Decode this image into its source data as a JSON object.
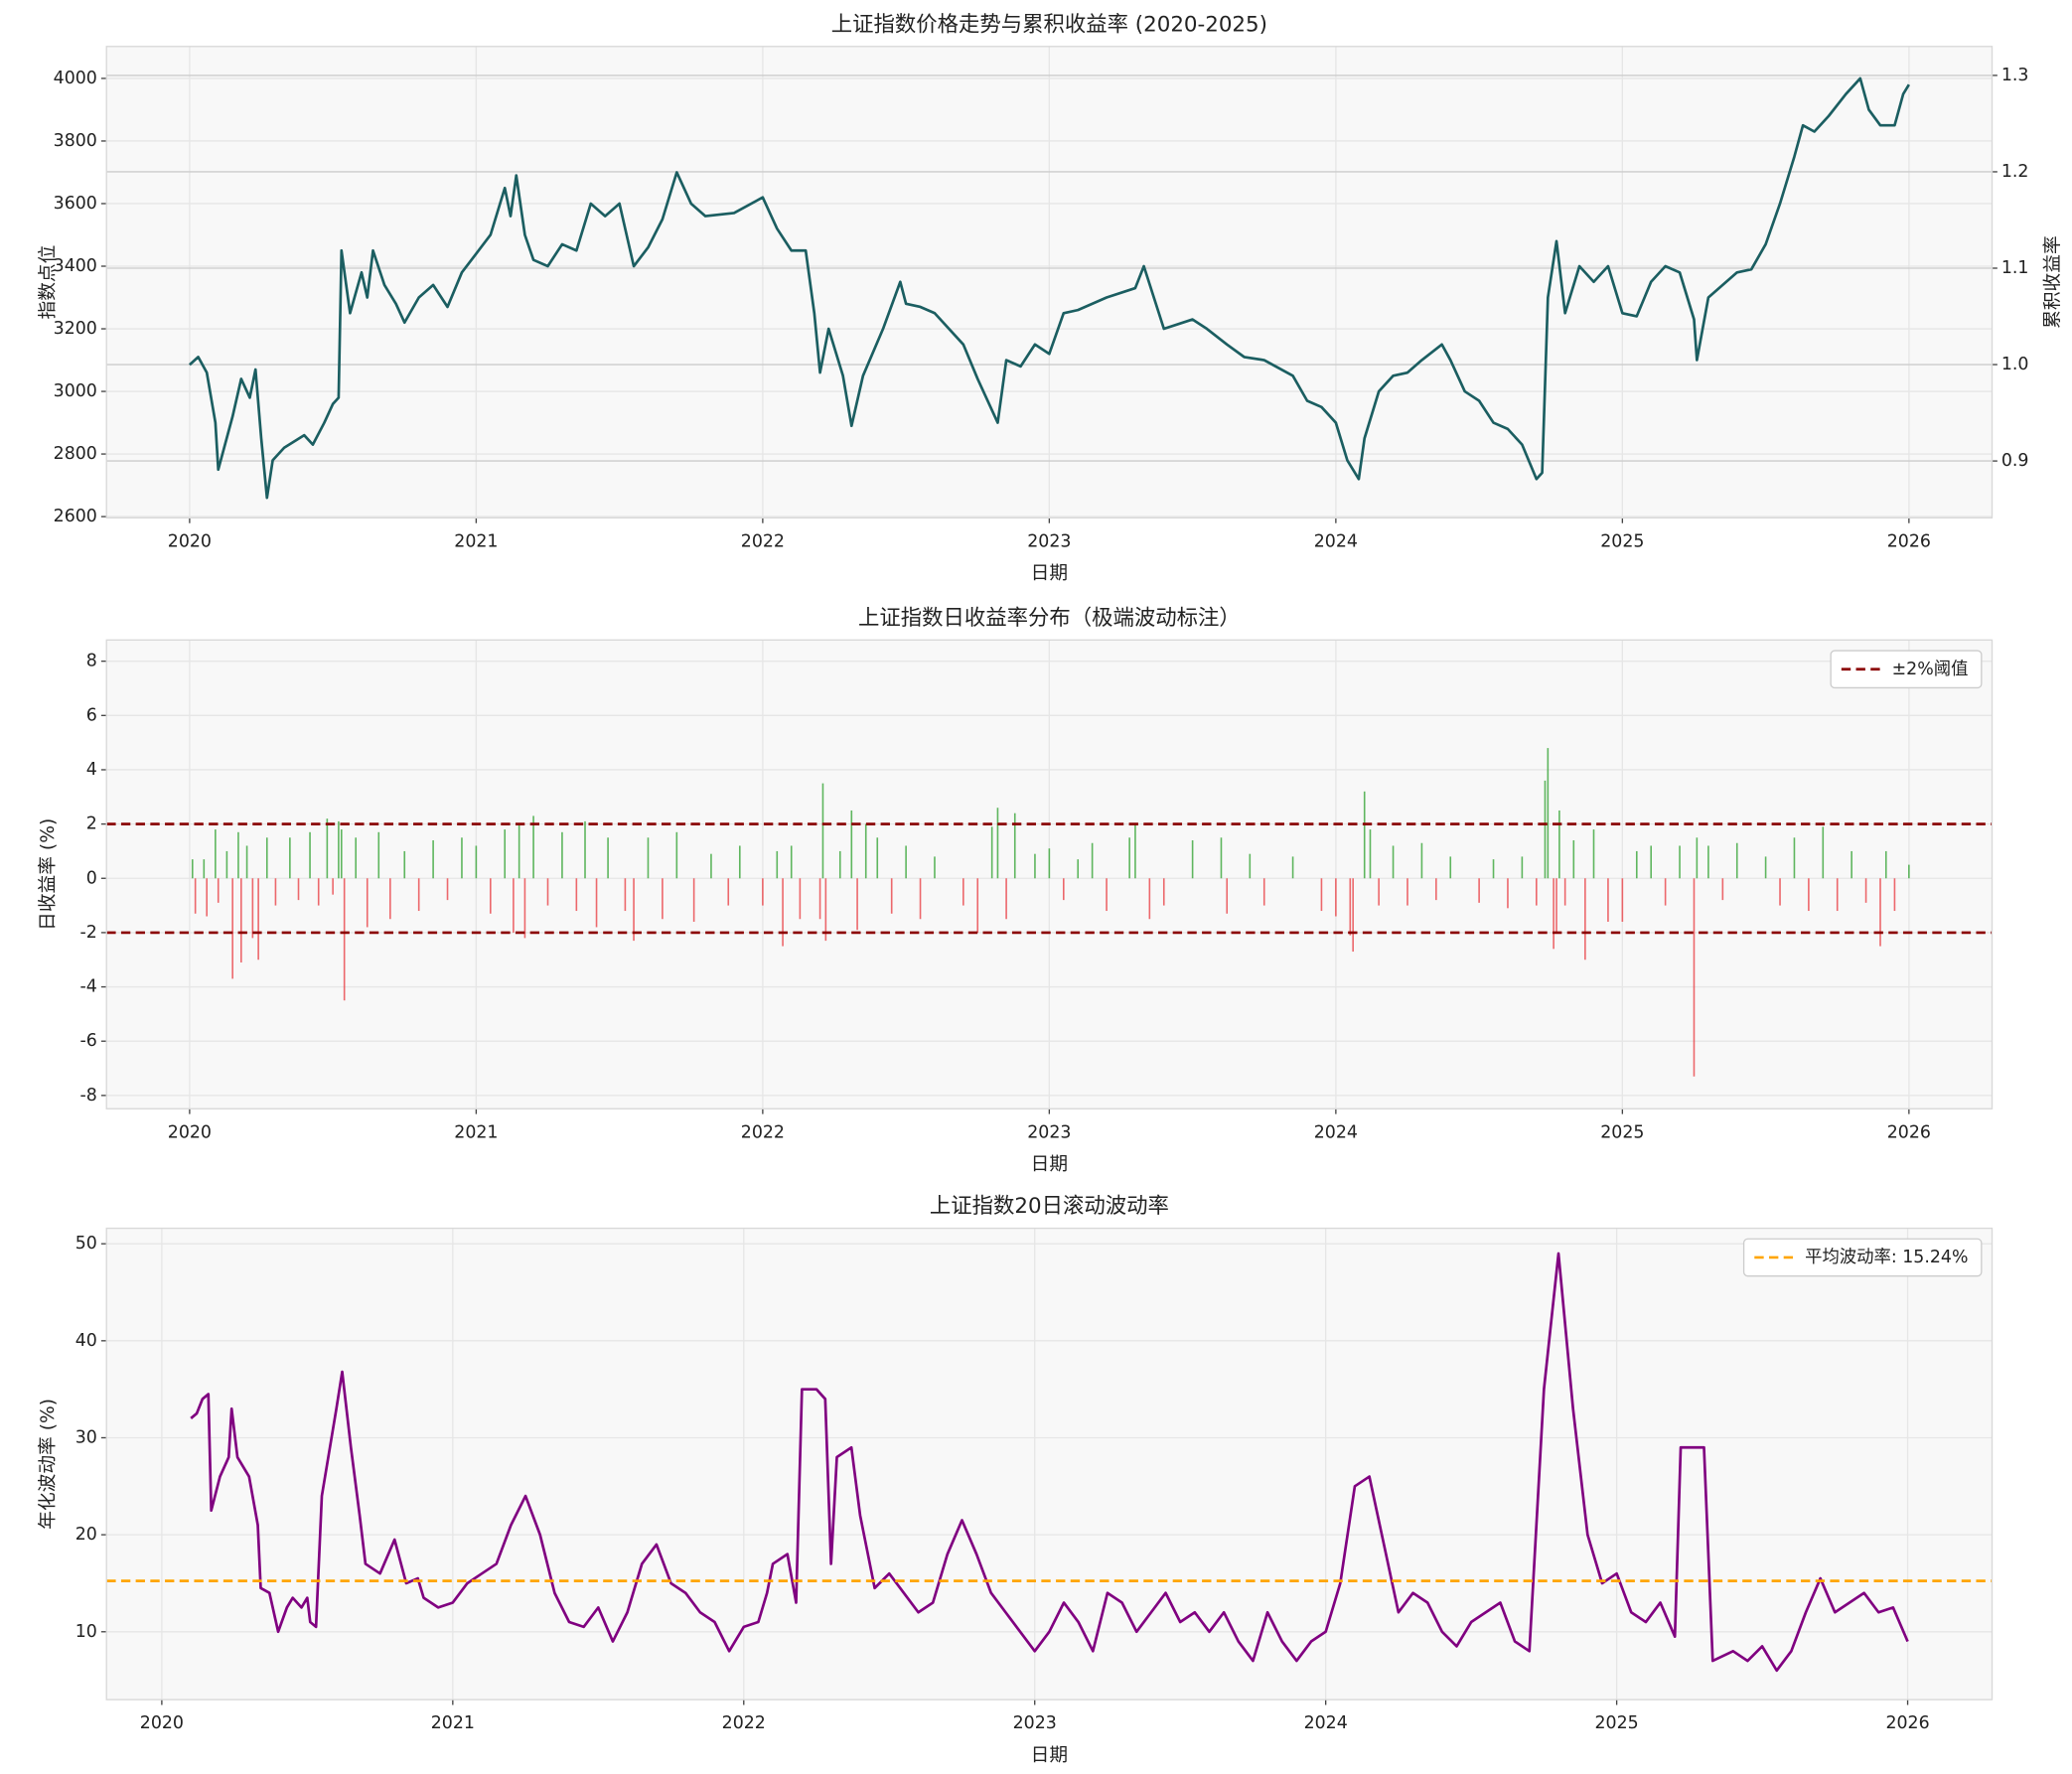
{
  "chart_data": [
    {
      "type": "line",
      "title": "上证指数价格走势与累积收益率 (2020-2025)",
      "x_label": "日期",
      "y_label": "指数点位",
      "y_label_color": "#0000ff",
      "y2_label": "累积收益率",
      "y2_label_color": "#008000",
      "xlim": [
        2019.71,
        2026.29
      ],
      "xticks": [
        2020,
        2021,
        2022,
        2023,
        2024,
        2025,
        2026
      ],
      "ylim": [
        2596,
        4102
      ],
      "yticks": [
        2600,
        2800,
        3000,
        3200,
        3400,
        3600,
        3800,
        4000
      ],
      "y2lim": [
        0.841,
        1.33
      ],
      "y2ticks": [
        0.9,
        {
          "value": 1.0,
          "label": "1.0"
        },
        1.1,
        1.2,
        1.3
      ],
      "grid": true,
      "x": [
        2020.0,
        2020.03,
        2020.06,
        2020.09,
        2020.1,
        2020.15,
        2020.18,
        2020.21,
        2020.23,
        2020.25,
        2020.27,
        2020.29,
        2020.33,
        2020.4,
        2020.43,
        2020.47,
        2020.5,
        2020.52,
        2020.53,
        2020.56,
        2020.6,
        2020.62,
        2020.64,
        2020.68,
        2020.72,
        2020.75,
        2020.8,
        2020.85,
        2020.9,
        2020.95,
        2021.0,
        2021.05,
        2021.1,
        2021.12,
        2021.14,
        2021.17,
        2021.2,
        2021.25,
        2021.3,
        2021.35,
        2021.4,
        2021.45,
        2021.5,
        2021.55,
        2021.6,
        2021.65,
        2021.7,
        2021.75,
        2021.8,
        2021.9,
        2022.0,
        2022.05,
        2022.1,
        2022.15,
        2022.18,
        2022.2,
        2022.23,
        2022.28,
        2022.31,
        2022.35,
        2022.42,
        2022.48,
        2022.5,
        2022.55,
        2022.6,
        2022.7,
        2022.75,
        2022.82,
        2022.85,
        2022.9,
        2022.95,
        2023.0,
        2023.05,
        2023.1,
        2023.2,
        2023.3,
        2023.33,
        2023.4,
        2023.5,
        2023.55,
        2023.62,
        2023.68,
        2023.75,
        2023.85,
        2023.9,
        2023.95,
        2024.0,
        2024.04,
        2024.08,
        2024.1,
        2024.15,
        2024.2,
        2024.25,
        2024.3,
        2024.37,
        2024.4,
        2024.45,
        2024.5,
        2024.55,
        2024.6,
        2024.65,
        2024.7,
        2024.72,
        2024.74,
        2024.77,
        2024.8,
        2024.85,
        2024.9,
        2024.95,
        2025.0,
        2025.05,
        2025.1,
        2025.15,
        2025.2,
        2025.25,
        2025.26,
        2025.3,
        2025.4,
        2025.45,
        2025.5,
        2025.55,
        2025.6,
        2025.63,
        2025.67,
        2025.72,
        2025.78,
        2025.83,
        2025.86,
        2025.9,
        2025.95,
        2025.98,
        2026.0
      ],
      "series": [
        {
          "color": "#1b5e61",
          "values": [
            3085,
            3110,
            3060,
            2900,
            2750,
            2920,
            3040,
            2980,
            3070,
            2850,
            2660,
            2780,
            2820,
            2860,
            2830,
            2900,
            2960,
            2980,
            3450,
            3250,
            3380,
            3300,
            3450,
            3340,
            3280,
            3220,
            3300,
            3340,
            3270,
            3380,
            3440,
            3500,
            3650,
            3560,
            3690,
            3500,
            3420,
            3400,
            3470,
            3450,
            3600,
            3560,
            3600,
            3400,
            3460,
            3550,
            3700,
            3600,
            3560,
            3570,
            3620,
            3520,
            3450,
            3450,
            3250,
            3060,
            3200,
            3050,
            2890,
            3050,
            3200,
            3350,
            3280,
            3270,
            3250,
            3150,
            3040,
            2900,
            3100,
            3080,
            3150,
            3120,
            3250,
            3260,
            3300,
            3330,
            3400,
            3200,
            3230,
            3200,
            3150,
            3110,
            3100,
            3050,
            2970,
            2950,
            2900,
            2780,
            2720,
            2850,
            3000,
            3050,
            3060,
            3100,
            3150,
            3100,
            3000,
            2970,
            2900,
            2880,
            2830,
            2720,
            2740,
            3300,
            3480,
            3250,
            3400,
            3350,
            3400,
            3250,
            3240,
            3350,
            3400,
            3380,
            3230,
            3100,
            3300,
            3380,
            3390,
            3470,
            3600,
            3750,
            3850,
            3830,
            3880,
            3950,
            4000,
            3900,
            3850,
            3850,
            3950,
            3980
          ]
        }
      ]
    },
    {
      "type": "bar",
      "title": "上证指数日收益率分布（极端波动标注）",
      "x_label": "日期",
      "y_label": "日收益率 (%)",
      "xlim": [
        2019.71,
        2026.29
      ],
      "xticks": [
        2020,
        2021,
        2022,
        2023,
        2024,
        2025,
        2026
      ],
      "ylim": [
        -8.49,
        8.78
      ],
      "yticks": [
        -8,
        -6,
        -4,
        -2,
        0,
        2,
        4,
        6,
        8
      ],
      "grid": true,
      "up_color": "#2ca02c",
      "down_color": "#e8383d",
      "hlines": [
        2,
        -2
      ],
      "hline_color": "#8b0000",
      "hline_label": "±2%阈值",
      "legend_position": "upper right",
      "x": [
        2020.01,
        2020.02,
        2020.05,
        2020.06,
        2020.09,
        2020.1,
        2020.13,
        2020.15,
        2020.17,
        2020.18,
        2020.2,
        2020.22,
        2020.24,
        2020.27,
        2020.3,
        2020.35,
        2020.38,
        2020.42,
        2020.45,
        2020.48,
        2020.5,
        2020.52,
        2020.53,
        2020.54,
        2020.58,
        2020.62,
        2020.66,
        2020.7,
        2020.75,
        2020.8,
        2020.85,
        2020.9,
        2020.95,
        2021.0,
        2021.05,
        2021.1,
        2021.13,
        2021.15,
        2021.17,
        2021.2,
        2021.25,
        2021.3,
        2021.35,
        2021.38,
        2021.42,
        2021.46,
        2021.52,
        2021.55,
        2021.6,
        2021.65,
        2021.7,
        2021.76,
        2021.82,
        2021.88,
        2021.92,
        2022.0,
        2022.05,
        2022.07,
        2022.1,
        2022.13,
        2022.2,
        2022.21,
        2022.22,
        2022.27,
        2022.31,
        2022.33,
        2022.36,
        2022.4,
        2022.45,
        2022.5,
        2022.55,
        2022.6,
        2022.7,
        2022.75,
        2022.8,
        2022.82,
        2022.85,
        2022.88,
        2022.95,
        2023.0,
        2023.05,
        2023.1,
        2023.15,
        2023.2,
        2023.28,
        2023.3,
        2023.35,
        2023.4,
        2023.5,
        2023.6,
        2023.62,
        2023.7,
        2023.75,
        2023.85,
        2023.95,
        2024.0,
        2024.05,
        2024.06,
        2024.1,
        2024.12,
        2024.15,
        2024.2,
        2024.25,
        2024.3,
        2024.35,
        2024.4,
        2024.5,
        2024.55,
        2024.6,
        2024.65,
        2024.7,
        2024.73,
        2024.74,
        2024.76,
        2024.77,
        2024.78,
        2024.8,
        2024.83,
        2024.87,
        2024.9,
        2024.95,
        2025.0,
        2025.05,
        2025.1,
        2025.15,
        2025.2,
        2025.25,
        2025.26,
        2025.3,
        2025.35,
        2025.4,
        2025.5,
        2025.55,
        2025.6,
        2025.65,
        2025.7,
        2025.75,
        2025.8,
        2025.85,
        2025.9,
        2025.92,
        2025.95,
        2026.0
      ],
      "values": [
        0.7,
        -1.3,
        0.7,
        -1.4,
        1.8,
        -0.9,
        1.0,
        -3.7,
        1.7,
        -3.1,
        1.2,
        -2.2,
        -3.0,
        1.5,
        -1.0,
        1.5,
        -0.8,
        1.7,
        -1.0,
        2.2,
        -0.6,
        2.1,
        1.8,
        -4.5,
        1.5,
        -1.8,
        1.7,
        -1.5,
        1.0,
        -1.2,
        1.4,
        -0.8,
        1.5,
        1.2,
        -1.3,
        1.8,
        -2.0,
        2.0,
        -2.2,
        2.3,
        -1.0,
        1.7,
        -1.2,
        2.1,
        -1.8,
        1.5,
        -1.2,
        -2.3,
        1.5,
        -1.5,
        1.7,
        -1.6,
        0.9,
        -1.0,
        1.2,
        -1.0,
        1.0,
        -2.5,
        1.2,
        -1.5,
        -1.5,
        3.5,
        -2.3,
        1.0,
        2.5,
        -1.9,
        2.0,
        1.5,
        -1.3,
        1.2,
        -1.5,
        0.8,
        -1.0,
        -2.0,
        1.9,
        2.6,
        -1.5,
        2.4,
        0.9,
        1.1,
        -0.8,
        0.7,
        1.3,
        -1.2,
        1.5,
        2.0,
        -1.5,
        -1.0,
        1.4,
        1.5,
        -1.3,
        0.9,
        -1.0,
        0.8,
        -1.2,
        -1.4,
        -2.1,
        -2.7,
        3.2,
        1.8,
        -1.0,
        1.2,
        -1.0,
        1.3,
        -0.8,
        0.8,
        -0.9,
        0.7,
        -1.1,
        0.8,
        -1.0,
        3.6,
        4.8,
        -2.6,
        -2.0,
        2.5,
        -1.0,
        1.4,
        -3.0,
        1.8,
        -1.6,
        -1.6,
        1.0,
        1.2,
        -1.0,
        1.2,
        -7.3,
        1.5,
        1.2,
        -0.8,
        1.3,
        0.8,
        -1.0,
        1.5,
        -1.2,
        1.9,
        -1.2,
        1.0,
        -0.9,
        -2.5,
        1.0,
        -1.2,
        0.5
      ]
    },
    {
      "type": "line",
      "title": "上证指数20日滚动波动率",
      "x_label": "日期",
      "y_label": "年化波动率 (%)",
      "xlim": [
        2019.81,
        2026.29
      ],
      "xticks": [
        2020,
        2021,
        2022,
        2023,
        2024,
        2025,
        2026
      ],
      "ylim": [
        3.0,
        51.6
      ],
      "yticks": [
        10,
        20,
        30,
        40,
        50
      ],
      "grid": true,
      "hlines": [
        15.24
      ],
      "hline_color": "#ffa500",
      "hline_label": "平均波动率: 15.24%",
      "legend_position": "upper right",
      "x": [
        2020.1,
        2020.12,
        2020.14,
        2020.16,
        2020.17,
        2020.2,
        2020.23,
        2020.24,
        2020.26,
        2020.3,
        2020.33,
        2020.34,
        2020.37,
        2020.4,
        2020.43,
        2020.45,
        2020.48,
        2020.5,
        2020.51,
        2020.53,
        2020.55,
        2020.6,
        2020.62,
        2020.65,
        2020.68,
        2020.7,
        2020.75,
        2020.8,
        2020.84,
        2020.88,
        2020.9,
        2020.95,
        2021.0,
        2021.05,
        2021.1,
        2021.15,
        2021.2,
        2021.25,
        2021.3,
        2021.35,
        2021.4,
        2021.45,
        2021.5,
        2021.55,
        2021.6,
        2021.65,
        2021.7,
        2021.75,
        2021.8,
        2021.85,
        2021.9,
        2021.95,
        2022.0,
        2022.05,
        2022.08,
        2022.1,
        2022.15,
        2022.18,
        2022.2,
        2022.25,
        2022.28,
        2022.3,
        2022.32,
        2022.37,
        2022.4,
        2022.45,
        2022.5,
        2022.55,
        2022.6,
        2022.65,
        2022.7,
        2022.75,
        2022.8,
        2022.85,
        2022.9,
        2022.95,
        2023.0,
        2023.05,
        2023.1,
        2023.15,
        2023.2,
        2023.25,
        2023.3,
        2023.35,
        2023.4,
        2023.45,
        2023.5,
        2023.55,
        2023.6,
        2023.65,
        2023.7,
        2023.75,
        2023.8,
        2023.85,
        2023.9,
        2023.95,
        2024.0,
        2024.05,
        2024.1,
        2024.15,
        2024.2,
        2024.25,
        2024.3,
        2024.35,
        2024.4,
        2024.45,
        2024.5,
        2024.55,
        2024.6,
        2024.65,
        2024.7,
        2024.75,
        2024.8,
        2024.85,
        2024.9,
        2024.95,
        2025.0,
        2025.05,
        2025.1,
        2025.15,
        2025.2,
        2025.22,
        2025.3,
        2025.33,
        2025.4,
        2025.45,
        2025.5,
        2025.55,
        2025.6,
        2025.65,
        2025.7,
        2025.75,
        2025.8,
        2025.85,
        2025.9,
        2025.95,
        2026.0
      ],
      "series": [
        {
          "color": "#800080",
          "values": [
            32,
            32.5,
            34,
            34.5,
            22.5,
            26,
            28,
            33,
            28,
            26,
            21,
            14.5,
            14,
            10,
            12.5,
            13.5,
            12.5,
            13.5,
            11,
            10.5,
            24,
            33,
            36.8,
            29,
            22,
            17,
            16,
            19.5,
            15,
            15.5,
            13.5,
            12.5,
            13,
            15,
            16,
            17,
            21,
            24,
            20,
            14,
            11,
            10.5,
            12.5,
            9,
            12,
            17,
            19,
            15,
            14,
            12,
            11,
            8,
            10.5,
            11,
            14,
            17,
            18,
            13,
            35,
            35,
            34,
            17,
            28,
            29,
            22,
            14.5,
            16,
            14,
            12,
            13,
            18,
            21.5,
            18,
            14,
            12,
            10,
            8,
            10,
            13,
            11,
            8,
            14,
            13,
            10,
            12,
            14,
            11,
            12,
            10,
            12,
            9,
            7,
            12,
            9,
            7,
            9,
            10,
            15,
            25,
            26,
            19,
            12,
            14,
            13,
            10,
            8.5,
            11,
            12,
            13,
            9,
            8,
            35,
            49,
            33,
            20,
            15,
            16,
            12,
            11,
            13,
            9.5,
            29,
            29,
            7,
            8,
            7,
            8.5,
            6,
            8,
            12,
            15.5,
            12,
            13,
            14,
            12,
            12.5,
            9
          ]
        }
      ]
    }
  ]
}
